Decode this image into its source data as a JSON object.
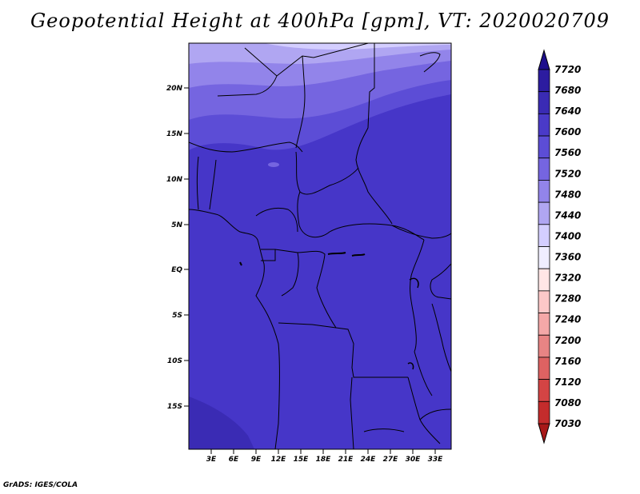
{
  "title": "Geopotential Height at 400hPa [gpm], VT: 2020020709",
  "credit": "GrADS: IGES/COLA",
  "map": {
    "lat_labels": [
      "20N",
      "15N",
      "10N",
      "5N",
      "EQ",
      "5S",
      "10S",
      "15S"
    ],
    "lon_labels": [
      "3E",
      "6E",
      "9E",
      "12E",
      "15E",
      "18E",
      "21E",
      "24E",
      "27E",
      "30E",
      "33E"
    ],
    "background_color": "#4636c8"
  },
  "colorbar": {
    "labels": [
      "7720",
      "7680",
      "7640",
      "7600",
      "7560",
      "7520",
      "7480",
      "7440",
      "7400",
      "7360",
      "7320",
      "7280",
      "7240",
      "7200",
      "7160",
      "7120",
      "7080",
      "7030"
    ],
    "colors": [
      "#1e0f8c",
      "#2c1ca0",
      "#3a2bb4",
      "#4a3ac8",
      "#5c4dd6",
      "#7565e0",
      "#9284ea",
      "#b0a6f2",
      "#d4ceff",
      "#f0eeff",
      "#ffe6e6",
      "#fcc8c8",
      "#f4a8a8",
      "#e88484",
      "#de6262",
      "#d44444",
      "#c42c2c",
      "#a81818"
    ]
  }
}
